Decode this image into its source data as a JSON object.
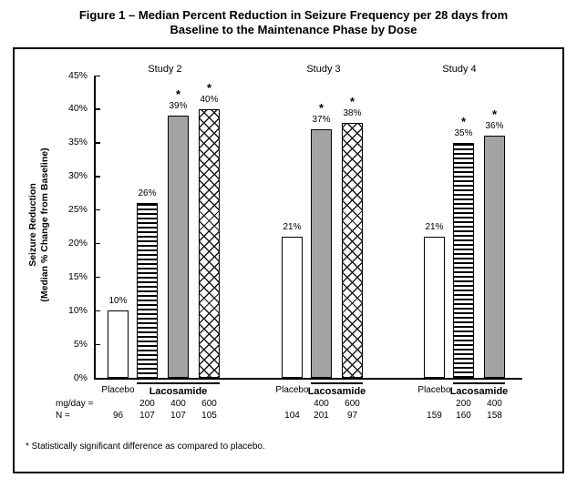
{
  "figure": {
    "title_line1": "Figure 1 – Median Percent Reduction in Seizure Frequency per 28 days from",
    "title_line2": "Baseline to the Maintenance Phase by Dose"
  },
  "chart_data": {
    "type": "bar",
    "title": "Figure 1 – Median Percent Reduction in Seizure Frequency per 28 days from Baseline to the Maintenance Phase by Dose",
    "ylabel_line1": "Seizure Reduction",
    "ylabel_line2": "(Median % Change from Baseline)",
    "ylim": [
      0,
      45
    ],
    "grid": false,
    "ytick_percent": [
      0,
      5,
      10,
      15,
      20,
      25,
      30,
      35,
      40,
      45
    ],
    "ytick_labels": [
      "0%",
      "5%",
      "10%",
      "15%",
      "20%",
      "25%",
      "30%",
      "35%",
      "40%",
      "45%"
    ],
    "sig_marker": "*",
    "row_captions": {
      "dose": "mg/day =",
      "n": "N ="
    },
    "footnote": "* Statistically significant difference as compared to placebo.",
    "groups": [
      {
        "name": "Study 2",
        "placebo": {
          "label": "Placebo",
          "value": 10,
          "value_label": "10%",
          "n": "96",
          "significant": false,
          "pattern": "plain"
        },
        "treatment_label": "Lacosamide",
        "treatment_bars": [
          {
            "dose": "200",
            "value": 26,
            "value_label": "26%",
            "n": "107",
            "significant": false,
            "pattern": "hstripe"
          },
          {
            "dose": "400",
            "value": 39,
            "value_label": "39%",
            "n": "107",
            "significant": true,
            "pattern": "gray"
          },
          {
            "dose": "600",
            "value": 40,
            "value_label": "40%",
            "n": "105",
            "significant": true,
            "pattern": "crosshatch"
          }
        ]
      },
      {
        "name": "Study 3",
        "placebo": {
          "label": "Placebo",
          "value": 21,
          "value_label": "21%",
          "n": "104",
          "significant": false,
          "pattern": "plain"
        },
        "treatment_label": "Lacosamide",
        "treatment_bars": [
          {
            "dose": "400",
            "value": 37,
            "value_label": "37%",
            "n": "201",
            "significant": true,
            "pattern": "gray"
          },
          {
            "dose": "600",
            "value": 38,
            "value_label": "38%",
            "n": "97",
            "significant": true,
            "pattern": "crosshatch"
          }
        ]
      },
      {
        "name": "Study 4",
        "placebo": {
          "label": "Placebo",
          "value": 21,
          "value_label": "21%",
          "n": "159",
          "significant": false,
          "pattern": "plain"
        },
        "treatment_label": "Lacosamide",
        "treatment_bars": [
          {
            "dose": "200",
            "value": 35,
            "value_label": "35%",
            "n": "160",
            "significant": true,
            "pattern": "hstripe"
          },
          {
            "dose": "400",
            "value": 36,
            "value_label": "36%",
            "n": "158",
            "significant": true,
            "pattern": "gray"
          }
        ]
      }
    ]
  }
}
